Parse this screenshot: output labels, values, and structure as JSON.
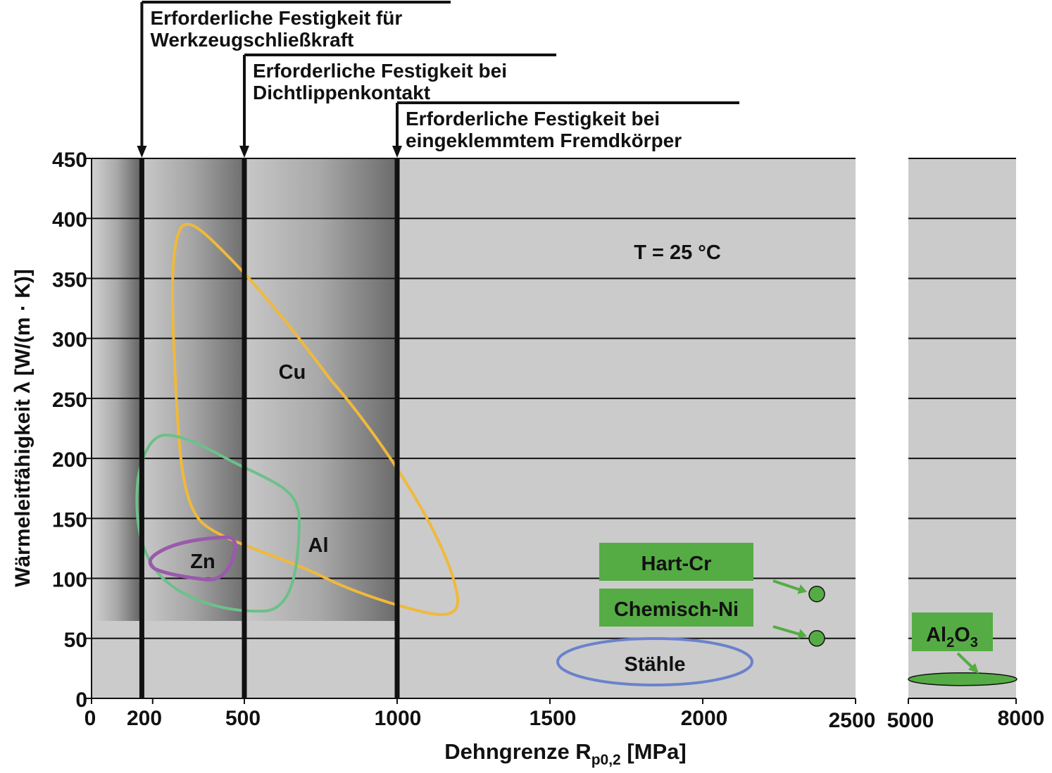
{
  "chart_data": {
    "type": "scatter",
    "xlabel_main": "Dehngrenze R",
    "xlabel_sub": "p0,2",
    "xlabel_unit": " [MPa]",
    "ylabel": "Wärmeleitfähigkeit λ [W/(m · K)]",
    "ylim": [
      0,
      450
    ],
    "y_ticks": [
      "0",
      "50",
      "100",
      "150",
      "200",
      "250",
      "300",
      "350",
      "400",
      "450"
    ],
    "x_ticks_left": [
      "0",
      "200",
      "500",
      "1000",
      "1500",
      "2000",
      "2500"
    ],
    "x_ticks_right": [
      "5000",
      "8000"
    ],
    "xlim_left": [
      0,
      2500
    ],
    "xlim_right": [
      5000,
      8000
    ],
    "condition": "T = 25 °C",
    "required_strength": [
      {
        "value": 160,
        "label_line1": "Erforderliche Festigkeit für",
        "label_line2": "Werkzeugschließkraft"
      },
      {
        "value": 500,
        "label_line1": "Erforderliche Festigkeit bei",
        "label_line2": "Dichtlippenkontakt"
      },
      {
        "value": 1000,
        "label_line1": "Erforderliche Festigkeit bei",
        "label_line2": "eingeklemmtem Fremdkörper"
      }
    ],
    "materials": [
      {
        "name": "Cu",
        "color": "#f0b93a",
        "approx_x_range": [
          250,
          1190
        ],
        "approx_y_range": [
          70,
          393
        ]
      },
      {
        "name": "Al",
        "color": "#6cc08a",
        "approx_x_range": [
          140,
          680
        ],
        "approx_y_range": [
          72,
          218
        ]
      },
      {
        "name": "Zn",
        "color": "#9a5aac",
        "approx_x_range": [
          195,
          470
        ],
        "approx_y_range": [
          98,
          133
        ]
      },
      {
        "name": "Stähle",
        "color": "#6a82cc",
        "approx_x_range": [
          1520,
          2160
        ],
        "approx_y_range": [
          10,
          55
        ]
      }
    ],
    "coatings": [
      {
        "name": "Hart-Cr",
        "x": 2380,
        "y": 87,
        "color": "#55ac44"
      },
      {
        "name": "Chemisch-Ni",
        "x": 2380,
        "y": 50,
        "color": "#55ac44"
      },
      {
        "name_main": "Al",
        "name_sub1": "2",
        "name_mid": "O",
        "name_sub2": "3",
        "x_range": [
          5000,
          8000
        ],
        "y": 16,
        "color": "#55ac44"
      }
    ]
  }
}
